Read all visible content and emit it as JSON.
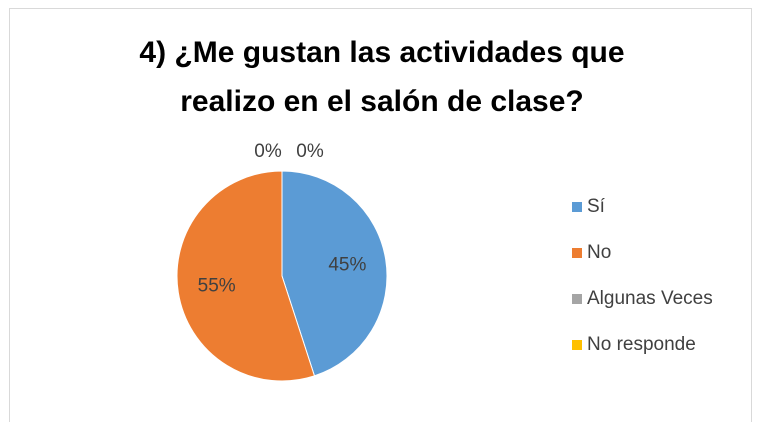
{
  "chart_data": {
    "type": "pie",
    "title": [
      "4) ¿Me gustan las actividades que",
      "realizo en el salón de clase?"
    ],
    "categories": [
      "Sí",
      "No",
      "Algunas Veces",
      "No responde"
    ],
    "values": [
      45,
      55,
      0,
      0
    ],
    "value_labels": [
      "45%",
      "55%",
      "0%",
      "0%"
    ],
    "colors": [
      "#5b9bd5",
      "#ed7d31",
      "#a5a5a5",
      "#ffc000"
    ],
    "legend": "right"
  }
}
